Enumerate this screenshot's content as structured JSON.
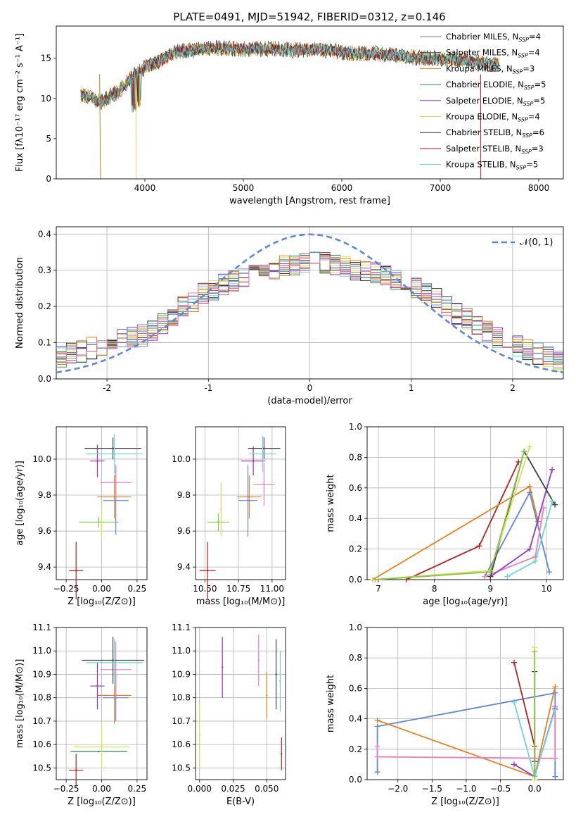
{
  "figure": {
    "title": "PLATE=0491, MJD=51942, FIBERID=0312, z=0.146"
  },
  "model_colors": [
    "#808080",
    "#404040",
    "#b8860b",
    "#2e8b57",
    "#9932cc",
    "#d4e157",
    "#303030",
    "#b22222",
    "#6dd5d5"
  ],
  "chart_data": [
    {
      "id": "spectrum",
      "type": "line",
      "title": "PLATE=0491, MJD=51942, FIBERID=0312, z=0.146",
      "xlabel": "wavelength [Angstrom, rest frame]",
      "ylabel": "Flux [fλ10⁻¹⁷ erg cm⁻² s⁻¹ A⁻¹]",
      "xlim": [
        3100,
        8250
      ],
      "ylim": [
        0,
        19
      ],
      "xticks": [
        4000,
        5000,
        6000,
        7000,
        8000
      ],
      "yticks": [
        0,
        5,
        10,
        15
      ],
      "legend": "top-right",
      "grid": false,
      "x": [
        3350,
        3450,
        3550,
        3650,
        3750,
        3850,
        3950,
        4050,
        4150,
        4300,
        4500,
        4700,
        4900,
        5100,
        5300,
        5500,
        5700,
        5900,
        6100,
        6300,
        6500,
        6700,
        6900,
        7100,
        7300,
        7500,
        7600
      ],
      "y": [
        10.5,
        10.2,
        9.5,
        10.3,
        11.0,
        12.5,
        13.5,
        14.2,
        14.6,
        15.8,
        16.0,
        16.3,
        16.2,
        16.1,
        16.2,
        16.0,
        16.1,
        15.9,
        15.6,
        15.6,
        15.4,
        15.1,
        15.0,
        14.9,
        14.6,
        14.3,
        14.1
      ],
      "series": [
        {
          "name": "Chabrier MILES, N_SSP=4"
        },
        {
          "name": "Salpeter MILES, N_SSP=4"
        },
        {
          "name": "Kroupa MILES, N_SSP=3"
        },
        {
          "name": "Chabrier ELODIE, N_SSP=5"
        },
        {
          "name": "Salpeter ELODIE, N_SSP=5"
        },
        {
          "name": "Kroupa ELODIE, N_SSP=4"
        },
        {
          "name": "Chabrier STELIB, N_SSP=6"
        },
        {
          "name": "Salpeter STELIB, N_SSP=3"
        },
        {
          "name": "Kroupa STELIB, N_SSP=5"
        }
      ]
    },
    {
      "id": "residuals",
      "type": "line",
      "xlabel": "(data-model)/error",
      "ylabel": "Normed distribution",
      "xlim": [
        -2.5,
        2.5
      ],
      "ylim": [
        0,
        0.42
      ],
      "xticks": [
        -2,
        -1,
        0,
        1,
        2
      ],
      "yticks": [
        0.0,
        0.1,
        0.2,
        0.3,
        0.4
      ],
      "grid": true,
      "legend": "top-right",
      "reference": {
        "name": "𝒩(0, 1)",
        "color": "#5f87d4",
        "style": "dashed"
      },
      "bins": [
        -2.5,
        -2.4,
        -2.3,
        -2.2,
        -2.1,
        -2.0,
        -1.9,
        -1.8,
        -1.7,
        -1.6,
        -1.5,
        -1.4,
        -1.3,
        -1.2,
        -1.1,
        -1.0,
        -0.9,
        -0.8,
        -0.7,
        -0.6,
        -0.5,
        -0.4,
        -0.3,
        -0.2,
        -0.1,
        0.0,
        0.1,
        0.2,
        0.3,
        0.4,
        0.5,
        0.6,
        0.7,
        0.8,
        0.9,
        1.0,
        1.1,
        1.2,
        1.3,
        1.4,
        1.5,
        1.6,
        1.7,
        1.8,
        1.9,
        2.0,
        2.1,
        2.2,
        2.3,
        2.4
      ],
      "base": [
        0.06,
        0.07,
        0.075,
        0.085,
        0.095,
        0.105,
        0.11,
        0.115,
        0.12,
        0.135,
        0.155,
        0.175,
        0.2,
        0.215,
        0.235,
        0.245,
        0.26,
        0.27,
        0.28,
        0.29,
        0.3,
        0.305,
        0.31,
        0.315,
        0.32,
        0.32,
        0.32,
        0.315,
        0.31,
        0.3,
        0.3,
        0.295,
        0.285,
        0.275,
        0.265,
        0.25,
        0.235,
        0.22,
        0.2,
        0.18,
        0.165,
        0.145,
        0.13,
        0.115,
        0.1,
        0.09,
        0.08,
        0.07,
        0.06,
        0.05
      ],
      "extra_colors": [
        "#e8801f",
        "#5f87d4",
        "#e87dba"
      ]
    },
    {
      "id": "age_vs_Z",
      "type": "scatter",
      "xlabel": "Z [log₁₀(Z/Z⊙)]",
      "ylabel": "age  [log₁₀(age/yr)]",
      "xlim": [
        -0.32,
        0.32
      ],
      "ylim": [
        9.33,
        10.18
      ],
      "xticks": [
        -0.25,
        0.0,
        0.25
      ],
      "xticklabels": [
        "−0.25",
        "0.00",
        "0.25"
      ],
      "yticks": [
        9.4,
        9.6,
        9.8,
        10.0
      ],
      "grid": true,
      "points": [
        {
          "x": -0.18,
          "y": 9.38,
          "xerr": 0.05,
          "yerr": 0.16,
          "color": "#b22222"
        },
        {
          "x": -0.02,
          "y": 9.65,
          "xerr": 0.14,
          "yerr": 0.03,
          "color": "#8bc34a"
        },
        {
          "x": 0.0,
          "y": 9.65,
          "xerr": 0.0,
          "yerr": 0.1,
          "color": "#d4e157"
        },
        {
          "x": 0.09,
          "y": 9.79,
          "xerr": 0.12,
          "yerr": 0.12,
          "color": "#e8801f"
        },
        {
          "x": 0.1,
          "y": 9.77,
          "xerr": 0.09,
          "yerr": 0.19,
          "color": "#5f87d4"
        },
        {
          "x": 0.1,
          "y": 9.87,
          "xerr": 0.11,
          "yerr": 0.1,
          "color": "#e87dba"
        },
        {
          "x": -0.03,
          "y": 9.99,
          "xerr": 0.05,
          "yerr": 0.09,
          "color": "#9932cc"
        },
        {
          "x": 0.08,
          "y": 10.06,
          "xerr": 0.2,
          "yerr": 0.06,
          "color": "#404040"
        },
        {
          "x": 0.09,
          "y": 10.03,
          "xerr": 0.2,
          "yerr": 0.11,
          "color": "#6dd5d5"
        }
      ]
    },
    {
      "id": "age_vs_mass",
      "type": "scatter",
      "xlabel": "mass [log₁₀(M/M⊙)]",
      "xlim": [
        10.43,
        11.1
      ],
      "ylim": [
        9.33,
        10.18
      ],
      "xticks": [
        10.5,
        10.75,
        11.0
      ],
      "xticklabels": [
        "10.50",
        "10.75",
        "11.00"
      ],
      "yticks": [
        9.4,
        9.6,
        9.8,
        10.0
      ],
      "grid": true,
      "points": [
        {
          "x": 10.52,
          "y": 9.38,
          "xerr": 0.06,
          "yerr": 0.16,
          "color": "#b22222"
        },
        {
          "x": 10.6,
          "y": 9.65,
          "xerr": 0.08,
          "yerr": 0.05,
          "color": "#8bc34a"
        },
        {
          "x": 10.62,
          "y": 9.72,
          "xerr": 0.0,
          "yerr": 0.15,
          "color": "#d4e157"
        },
        {
          "x": 10.83,
          "y": 9.79,
          "xerr": 0.09,
          "yerr": 0.12,
          "color": "#e8801f"
        },
        {
          "x": 10.82,
          "y": 9.77,
          "xerr": 0.07,
          "yerr": 0.2,
          "color": "#5f87d4"
        },
        {
          "x": 10.94,
          "y": 9.86,
          "xerr": 0.08,
          "yerr": 0.12,
          "color": "#e87dba"
        },
        {
          "x": 10.86,
          "y": 9.99,
          "xerr": 0.09,
          "yerr": 0.08,
          "color": "#9932cc"
        },
        {
          "x": 10.94,
          "y": 10.06,
          "xerr": 0.12,
          "yerr": 0.06,
          "color": "#404040"
        },
        {
          "x": 10.93,
          "y": 10.03,
          "xerr": 0.1,
          "yerr": 0.1,
          "color": "#6dd5d5"
        }
      ]
    },
    {
      "id": "weight_vs_age",
      "type": "line",
      "xlabel": "age  [log₁₀(age/yr)]",
      "ylabel": "mass weight",
      "xlim": [
        6.8,
        10.3
      ],
      "ylim": [
        0,
        1
      ],
      "xticks": [
        7,
        8,
        9,
        10
      ],
      "yticks": [
        0.0,
        0.2,
        0.4,
        0.6,
        0.8,
        1.0
      ],
      "grid": true,
      "series": [
        {
          "color": "#b22222",
          "x": [
            7.5,
            8.8,
            9.5
          ],
          "y": [
            0.0,
            0.22,
            0.77
          ]
        },
        {
          "color": "#e8801f",
          "x": [
            6.9,
            9.7,
            9.85
          ],
          "y": [
            0.0,
            0.61,
            0.38
          ]
        },
        {
          "color": "#5f87d4",
          "x": [
            8.9,
            9.7,
            10.05
          ],
          "y": [
            0.02,
            0.57,
            0.05
          ]
        },
        {
          "color": "#e87dba",
          "x": [
            8.9,
            9.8,
            9.95
          ],
          "y": [
            0.02,
            0.15,
            0.47
          ]
        },
        {
          "color": "#9932cc",
          "x": [
            9.0,
            9.7,
            10.1
          ],
          "y": [
            0.02,
            0.2,
            0.72
          ]
        },
        {
          "color": "#404040",
          "x": [
            9.0,
            9.6,
            10.15
          ],
          "y": [
            0.02,
            0.84,
            0.49
          ]
        },
        {
          "color": "#d4e157",
          "x": [
            6.9,
            9.0,
            9.7
          ],
          "y": [
            0.0,
            0.06,
            0.87
          ]
        },
        {
          "color": "#6dd5d5",
          "x": [
            9.3,
            9.8,
            10.1
          ],
          "y": [
            0.02,
            0.12,
            0.51
          ]
        },
        {
          "color": "#8bc34a",
          "x": [
            6.95,
            9.0,
            9.6
          ],
          "y": [
            0.0,
            0.05,
            0.84
          ]
        }
      ]
    },
    {
      "id": "mass_vs_Z",
      "type": "scatter",
      "xlabel": "Z [log₁₀(Z/Z⊙)]",
      "ylabel": "mass [log₁₀(M/M⊙)]",
      "xlim": [
        -0.32,
        0.32
      ],
      "ylim": [
        10.45,
        11.1
      ],
      "xticks": [
        -0.25,
        0.0,
        0.25
      ],
      "xticklabels": [
        "−0.25",
        "0.00",
        "0.25"
      ],
      "yticks": [
        10.5,
        10.6,
        10.7,
        10.8,
        10.9,
        11.0,
        11.1
      ],
      "grid": true,
      "points": [
        {
          "x": -0.18,
          "y": 10.49,
          "xerr": 0.05,
          "yerr": 0.07,
          "color": "#b22222"
        },
        {
          "x": -0.02,
          "y": 10.57,
          "xerr": 0.2,
          "yerr": 0.0,
          "color": "#2e8b57"
        },
        {
          "x": 0.0,
          "y": 10.59,
          "xerr": 0.2,
          "yerr": 0.1,
          "color": "#d4e157"
        },
        {
          "x": 0.09,
          "y": 10.81,
          "xerr": 0.12,
          "yerr": 0.12,
          "color": "#e8801f"
        },
        {
          "x": 0.1,
          "y": 10.8,
          "xerr": 0.09,
          "yerr": 0.1,
          "color": "#5f87d4"
        },
        {
          "x": 0.1,
          "y": 10.92,
          "xerr": 0.11,
          "yerr": 0.12,
          "color": "#e87dba"
        },
        {
          "x": -0.03,
          "y": 10.85,
          "xerr": 0.05,
          "yerr": 0.1,
          "color": "#9932cc"
        },
        {
          "x": 0.08,
          "y": 10.96,
          "xerr": 0.22,
          "yerr": 0.1,
          "color": "#404040"
        },
        {
          "x": 0.09,
          "y": 10.95,
          "xerr": 0.2,
          "yerr": 0.1,
          "color": "#6dd5d5"
        }
      ]
    },
    {
      "id": "mass_vs_ebv",
      "type": "scatter",
      "xlabel": "E(B-V)",
      "xlim": [
        -0.003,
        0.064
      ],
      "ylim": [
        10.45,
        11.1
      ],
      "xticks": [
        0.0,
        0.025,
        0.05
      ],
      "xticklabels": [
        "0.000",
        "0.025",
        "0.050"
      ],
      "yticks": [
        10.5,
        10.6,
        10.7,
        10.8,
        10.9,
        11.0,
        11.1
      ],
      "grid": true,
      "points": [
        {
          "x": 0.0,
          "y": 10.64,
          "xerr": 0.0,
          "yerr": 0.14,
          "color": "#d4e157"
        },
        {
          "x": 0.017,
          "y": 10.93,
          "xerr": 0.0,
          "yerr": 0.13,
          "color": "#9932cc"
        },
        {
          "x": 0.044,
          "y": 10.96,
          "xerr": 0.0,
          "yerr": 0.11,
          "color": "#e87dba"
        },
        {
          "x": 0.05,
          "y": 10.81,
          "xerr": 0.0,
          "yerr": 0.1,
          "color": "#e8801f"
        },
        {
          "x": 0.057,
          "y": 10.9,
          "xerr": 0.0,
          "yerr": 0.15,
          "color": "#404040"
        },
        {
          "x": 0.06,
          "y": 10.87,
          "xerr": 0.0,
          "yerr": 0.13,
          "color": "#6dd5d5"
        },
        {
          "x": 0.061,
          "y": 10.56,
          "xerr": 0.0,
          "yerr": 0.07,
          "color": "#b22222"
        }
      ]
    },
    {
      "id": "weight_vs_Z",
      "type": "line",
      "xlabel": "Z [log₁₀(Z/Z⊙)]",
      "ylabel": "mass weight",
      "xlim": [
        -2.45,
        0.42
      ],
      "ylim": [
        0,
        1
      ],
      "xticks": [
        -2.0,
        -1.5,
        -1.0,
        -0.5,
        0.0
      ],
      "xticklabels": [
        "−2.0",
        "−1.5",
        "−1.0",
        "−0.5",
        "0.0"
      ],
      "yticks": [
        0.0,
        0.2,
        0.4,
        0.6,
        0.8,
        1.0
      ],
      "grid": true,
      "series": [
        {
          "color": "#5f87d4",
          "x": [
            -2.3,
            -2.3,
            0.3,
            0.3
          ],
          "y": [
            0.05,
            0.35,
            0.57,
            0.02
          ]
        },
        {
          "color": "#e8801f",
          "x": [
            -2.3,
            0.0,
            0.3
          ],
          "y": [
            0.39,
            0.02,
            0.61
          ]
        },
        {
          "color": "#e87dba",
          "x": [
            -2.3,
            -2.3,
            0.3,
            0.3
          ],
          "y": [
            0.22,
            0.15,
            0.14,
            0.48
          ]
        },
        {
          "color": "#b22222",
          "x": [
            -0.3,
            0.0,
            0.0
          ],
          "y": [
            0.77,
            0.22,
            0.02
          ]
        },
        {
          "color": "#9932cc",
          "x": [
            -0.3,
            0.0,
            0.3
          ],
          "y": [
            0.1,
            0.02,
            0.47
          ]
        },
        {
          "color": "#404040",
          "x": [
            0.0,
            0.0,
            0.0
          ],
          "y": [
            0.02,
            0.71,
            0.12
          ]
        },
        {
          "color": "#d4e157",
          "x": [
            0.0,
            0.0,
            0.0
          ],
          "y": [
            0.02,
            0.87,
            0.0
          ]
        },
        {
          "color": "#6dd5d5",
          "x": [
            -0.3,
            0.0,
            0.3
          ],
          "y": [
            0.51,
            0.02,
            0.46
          ]
        },
        {
          "color": "#8bc34a",
          "x": [
            0.0,
            0.0
          ],
          "y": [
            0.03,
            0.84
          ]
        }
      ]
    }
  ]
}
